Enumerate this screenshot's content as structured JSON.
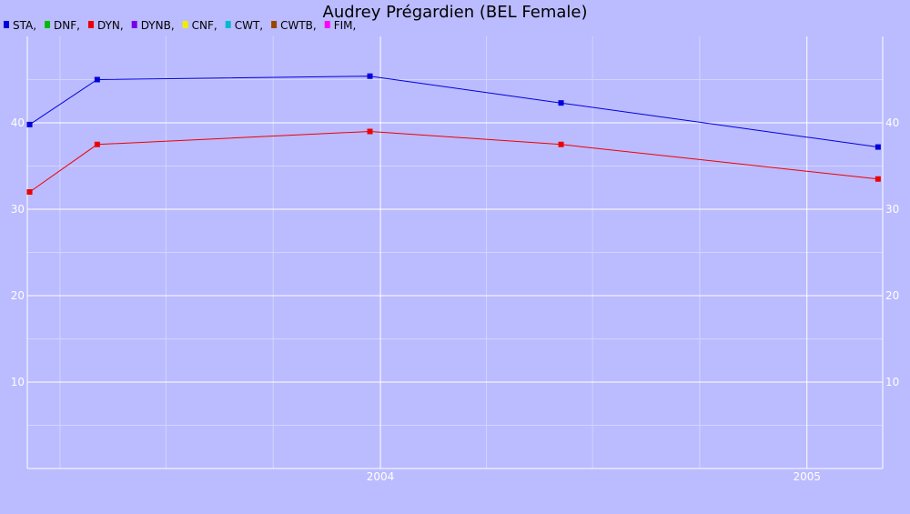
{
  "chart_data": {
    "type": "line",
    "title": "Audrey Prégardien (BEL Female)",
    "legend": {
      "placement": "top-left",
      "entries": [
        {
          "label": "STA,",
          "color": "#0000dd"
        },
        {
          "label": "DNF,",
          "color": "#00bb00"
        },
        {
          "label": "DYN,",
          "color": "#ee0000"
        },
        {
          "label": "DYNB,",
          "color": "#7700ee"
        },
        {
          "label": "CNF,",
          "color": "#eeee00"
        },
        {
          "label": "CWT,",
          "color": "#00bbcc"
        },
        {
          "label": "CWTB,",
          "color": "#994400"
        },
        {
          "label": "FIM,",
          "color": "#ff00ff"
        }
      ]
    },
    "x_axis": {
      "type": "date",
      "range": [
        "2003-03-04",
        "2005-03-07"
      ],
      "tick_labels": [
        "2004",
        "2005"
      ],
      "tick_values": [
        "2004-01-01",
        "2005-01-01"
      ]
    },
    "y_axis": {
      "range": [
        0,
        50
      ],
      "tick_labels": [
        "10",
        "20",
        "30",
        "40"
      ],
      "tick_values": [
        10,
        20,
        30,
        40
      ],
      "minor_gridlines": [
        5,
        15,
        25,
        35,
        45
      ],
      "shown_on_both_sides": true
    },
    "grid": true,
    "series": [
      {
        "name": "STA",
        "color": "#0000dd",
        "points": [
          {
            "x": "2003-03-06",
            "y": 39.8
          },
          {
            "x": "2003-05-03",
            "y": 45.0
          },
          {
            "x": "2003-12-23",
            "y": 45.4
          },
          {
            "x": "2004-06-04",
            "y": 42.3
          },
          {
            "x": "2005-03-03",
            "y": 37.2
          }
        ]
      },
      {
        "name": "DYN",
        "color": "#ee0000",
        "points": [
          {
            "x": "2003-03-06",
            "y": 32.0
          },
          {
            "x": "2003-05-03",
            "y": 37.5
          },
          {
            "x": "2003-12-23",
            "y": 39.0
          },
          {
            "x": "2004-06-04",
            "y": 37.5
          },
          {
            "x": "2005-03-03",
            "y": 33.5
          }
        ]
      }
    ]
  }
}
